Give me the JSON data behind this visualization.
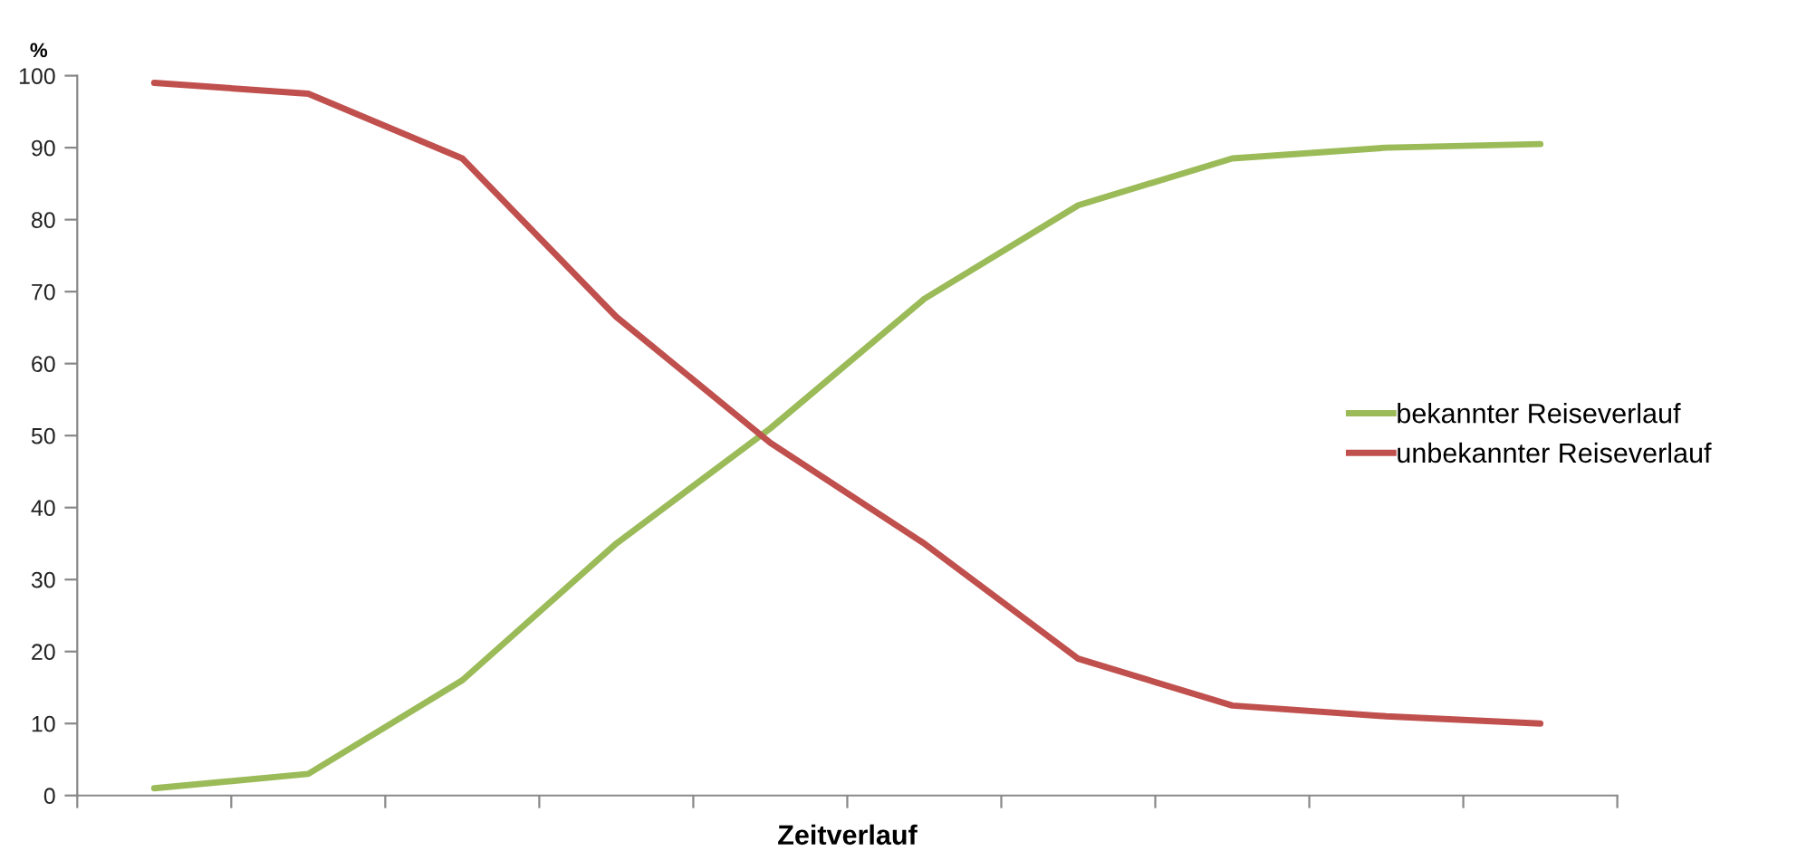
{
  "chart_data": {
    "type": "line",
    "ylabel": "%",
    "xlabel": "Zeitverlauf",
    "categories": [
      null,
      null,
      null,
      null,
      null,
      null,
      null,
      null,
      null,
      null
    ],
    "series": [
      {
        "name": "bekannter Reiseverlauf",
        "color": "#9bbb59",
        "values": [
          1,
          3,
          16,
          35,
          51,
          69,
          82,
          88.5,
          90,
          90.5
        ]
      },
      {
        "name": "unbekannter Reiseverlauf",
        "color": "#c0504d",
        "values": [
          99,
          97.5,
          88.5,
          66.5,
          49,
          35,
          19,
          12.5,
          11,
          10
        ]
      }
    ],
    "ylim": [
      0,
      100
    ],
    "yticks": [
      0,
      10,
      20,
      30,
      40,
      50,
      60,
      70,
      80,
      90,
      100
    ],
    "grid": false,
    "legend": "right",
    "marker": "none",
    "line_style": "solid"
  }
}
